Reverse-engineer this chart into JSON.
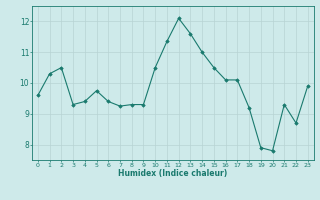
{
  "x": [
    0,
    1,
    2,
    3,
    4,
    5,
    6,
    7,
    8,
    9,
    10,
    11,
    12,
    13,
    14,
    15,
    16,
    17,
    18,
    19,
    20,
    21,
    22,
    23
  ],
  "y": [
    9.6,
    10.3,
    10.5,
    9.3,
    9.4,
    9.75,
    9.4,
    9.25,
    9.3,
    9.3,
    10.5,
    11.35,
    12.1,
    11.6,
    11.0,
    10.5,
    10.1,
    10.1,
    9.2,
    7.9,
    7.8,
    9.3,
    8.7,
    9.9
  ],
  "line_color": "#1a7a6e",
  "marker": "D",
  "marker_size": 1.8,
  "bg_color": "#ceeaea",
  "grid_color": "#b8d4d4",
  "xlabel": "Humidex (Indice chaleur)",
  "ylim": [
    7.5,
    12.5
  ],
  "xlim": [
    -0.5,
    23.5
  ],
  "yticks": [
    8,
    9,
    10,
    11,
    12
  ],
  "xticks": [
    0,
    1,
    2,
    3,
    4,
    5,
    6,
    7,
    8,
    9,
    10,
    11,
    12,
    13,
    14,
    15,
    16,
    17,
    18,
    19,
    20,
    21,
    22,
    23
  ],
  "figsize": [
    3.2,
    2.0
  ],
  "dpi": 100
}
